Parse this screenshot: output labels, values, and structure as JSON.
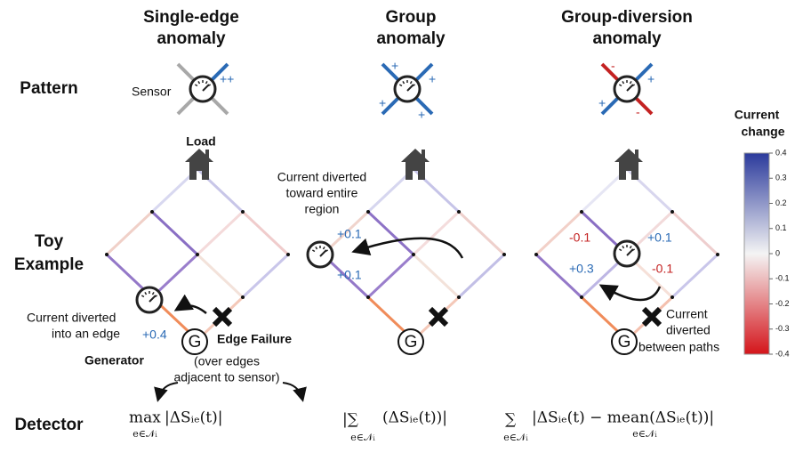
{
  "headers": [
    [
      "Single-edge",
      "anomaly"
    ],
    [
      "Group",
      "anomaly"
    ],
    [
      "Group-diversion",
      "anomaly"
    ]
  ],
  "row_labels": {
    "pattern": "Pattern",
    "toy": [
      "Toy",
      "Example"
    ],
    "detector": "Detector"
  },
  "pattern": {
    "sensor": "Sensor",
    "single": [
      "++"
    ],
    "group": [
      "+",
      "+",
      "+",
      "+"
    ],
    "diversion": [
      "-",
      "+",
      "+",
      "-"
    ]
  },
  "toy": {
    "load": "Load",
    "generator": "Generator",
    "g": "G",
    "edge_failure": "Edge Failure",
    "single_note": [
      "Current diverted",
      "into an edge"
    ],
    "single_value": "+0.4",
    "group_note": [
      "Current diverted",
      "toward entire",
      "region"
    ],
    "group_values": [
      "+0.1",
      "+0.1"
    ],
    "diversion_values": [
      "-0.1",
      "+0.1",
      "+0.3",
      "-0.1"
    ],
    "diversion_note": [
      "Current",
      "diverted",
      "between paths"
    ]
  },
  "colorbar": {
    "title": [
      "Current",
      "change"
    ],
    "ticks": [
      0.4,
      0.3,
      0.2,
      0.1,
      0,
      -0.1,
      -0.2,
      -0.3,
      -0.4
    ]
  },
  "detector": {
    "note": [
      "(over edges",
      "adjacent to sensor)"
    ],
    "formulas": [
      {
        "op": "max",
        "sub": "e∈𝒩ᵢ",
        "body": "|ΔSᵢₑ(t)|"
      },
      {
        "op": "|∑",
        "sub": "e∈𝒩ᵢ",
        "body": "(ΔSᵢₑ(t))|"
      },
      {
        "op": "∑",
        "sub": "e∈𝒩ᵢ",
        "body": "|ΔSᵢₑ(t) − mean(ΔSᵢₑ(t))|",
        "body_sub": "e∈𝒩ᵢ"
      }
    ]
  }
}
